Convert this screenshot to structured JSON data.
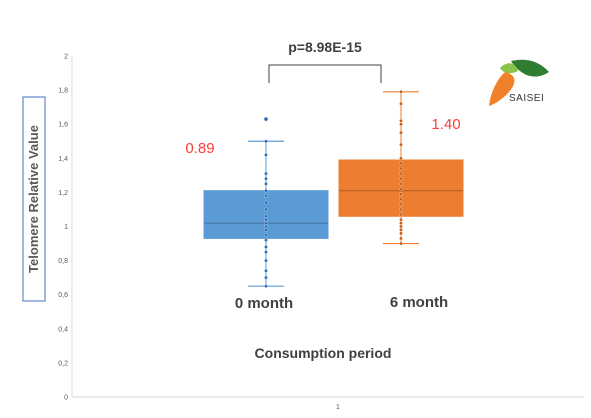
{
  "chart_data": {
    "type": "box",
    "ylabel": "Telomere Relative Value",
    "xlabel": "Consumption period",
    "x_tick_labels": [
      "1"
    ],
    "ylim": [
      0,
      2
    ],
    "y_ticks": [
      "0",
      "0,2",
      "0,4",
      "0,6",
      "0,8",
      "1",
      "1,2",
      "1,4",
      "1,6",
      "1,8",
      "2"
    ],
    "grid": false,
    "series": [
      {
        "name": "0 month",
        "color": "#5b9bd5",
        "whisker_low": 0.65,
        "q1": 0.93,
        "median": 1.02,
        "q3": 1.21,
        "whisker_high": 1.5,
        "outliers": [
          1.63
        ],
        "points": [
          0.65,
          0.7,
          0.74,
          0.8,
          0.85,
          0.88,
          0.92,
          0.95,
          0.98,
          1.0,
          1.02,
          1.04,
          1.06,
          1.1,
          1.14,
          1.18,
          1.21,
          1.25,
          1.28,
          1.31,
          1.42,
          1.5
        ],
        "annotation": "0.89",
        "annotation_color": "#ff3b3b"
      },
      {
        "name": "6 month",
        "color": "#ed7d31",
        "whisker_low": 0.9,
        "q1": 1.06,
        "median": 1.21,
        "q3": 1.39,
        "whisker_high": 1.79,
        "outliers": [],
        "points": [
          0.9,
          0.93,
          0.96,
          0.98,
          1.0,
          1.02,
          1.04,
          1.07,
          1.1,
          1.13,
          1.16,
          1.19,
          1.22,
          1.25,
          1.28,
          1.31,
          1.34,
          1.37,
          1.4,
          1.48,
          1.55,
          1.6,
          1.62,
          1.72,
          1.79
        ],
        "annotation": "1.40",
        "annotation_color": "#ff3b3b"
      }
    ],
    "significance": "p=8.98E-15"
  },
  "logo": {
    "text": "SAISEI"
  }
}
